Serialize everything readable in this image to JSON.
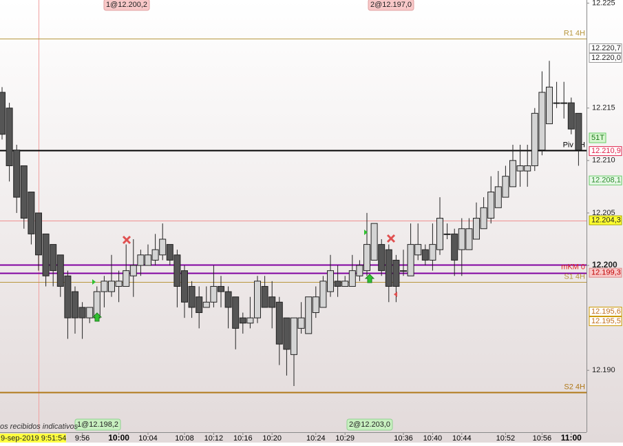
{
  "chart_data": {
    "type": "candlestick",
    "categories": [
      null,
      null,
      null,
      null,
      null,
      null,
      null,
      null,
      null,
      null,
      null,
      "9:56",
      null,
      null,
      null,
      null,
      "10:00",
      null,
      null,
      null,
      "10:04",
      null,
      null,
      null,
      null,
      "10:08",
      null,
      null,
      null,
      "10:12",
      null,
      null,
      null,
      "10:16",
      null,
      null,
      null,
      "10:20",
      null,
      null,
      null,
      null,
      null,
      "10:24",
      null,
      null,
      null,
      "10:29",
      null,
      null,
      null,
      null,
      null,
      null,
      null,
      "10:36",
      null,
      null,
      null,
      "10:40",
      null,
      null,
      null,
      "10:44",
      null,
      null,
      null,
      null,
      null,
      "10:52",
      null,
      null,
      null,
      null,
      "10:56",
      null,
      null,
      null,
      "11:00",
      null
    ],
    "open": [
      12.2165,
      12.215,
      12.211,
      12.2095,
      12.207,
      12.205,
      12.203,
      12.202,
      12.201,
      12.199,
      12.1975,
      12.196,
      12.195,
      12.195,
      12.1975,
      12.1975,
      12.198,
      12.198,
      12.199,
      12.2,
      12.2,
      12.2005,
      12.201,
      12.202,
      12.201,
      12.1995,
      12.198,
      12.197,
      12.196,
      12.1965,
      12.198,
      12.1975,
      12.197,
      12.195,
      12.1945,
      12.195,
      12.198,
      12.197,
      12.1965,
      12.195,
      12.1915,
      12.194,
      12.1935,
      12.1955,
      12.196,
      12.1975,
      12.1985,
      12.198,
      12.198,
      12.199,
      12.1995,
      12.2005,
      12.202,
      12.2015,
      12.2005,
      12.1995,
      12.199,
      12.201,
      12.2015,
      12.2005,
      12.2015,
      12.203,
      12.203,
      12.2015,
      12.2015,
      12.2025,
      12.2035,
      12.2045,
      12.2055,
      12.2065,
      12.2075,
      12.209,
      12.209,
      12.2095,
      12.211,
      12.2135,
      12.2155,
      12.2155,
      12.2155,
      12.2145
    ],
    "high": [
      12.217,
      12.2155,
      12.2115,
      12.2095,
      12.207,
      12.205,
      12.203,
      12.202,
      12.201,
      12.1995,
      12.198,
      12.1965,
      12.196,
      12.198,
      12.199,
      12.201,
      12.1995,
      12.202,
      12.2025,
      12.2015,
      12.202,
      12.203,
      12.204,
      12.202,
      12.2015,
      12.2,
      12.1985,
      12.198,
      12.198,
      12.2,
      12.199,
      12.198,
      12.197,
      12.1955,
      12.197,
      12.199,
      12.199,
      12.1985,
      12.197,
      12.195,
      12.195,
      12.1965,
      12.197,
      12.198,
      12.199,
      12.201,
      12.2,
      12.199,
      12.201,
      12.2005,
      12.205,
      12.204,
      12.2025,
      12.202,
      12.201,
      12.2015,
      12.204,
      12.204,
      12.202,
      12.204,
      12.2065,
      12.204,
      12.2035,
      12.2045,
      12.2045,
      12.206,
      12.2065,
      12.2085,
      12.209,
      12.2095,
      12.2115,
      12.2115,
      12.2115,
      12.215,
      12.2185,
      12.2195,
      12.2175,
      12.2175,
      12.216,
      12.2145
    ],
    "low": [
      12.212,
      12.208,
      12.205,
      12.2035,
      12.202,
      12.1995,
      12.198,
      12.198,
      12.197,
      12.193,
      12.1935,
      12.193,
      12.1945,
      12.195,
      12.196,
      12.197,
      12.1965,
      12.198,
      12.197,
      12.199,
      12.2,
      12.2,
      12.2005,
      12.2,
      12.196,
      12.195,
      12.195,
      12.194,
      12.196,
      12.196,
      12.196,
      12.194,
      12.192,
      12.1935,
      12.194,
      12.1945,
      12.196,
      12.194,
      12.1905,
      12.1895,
      12.1885,
      12.1935,
      12.1935,
      12.195,
      12.196,
      12.197,
      12.197,
      12.198,
      12.198,
      12.1985,
      12.199,
      12.2005,
      12.199,
      12.1965,
      12.1965,
      12.199,
      12.199,
      12.2005,
      12.2,
      12.1995,
      12.201,
      12.2025,
      12.199,
      12.199,
      12.2015,
      12.2025,
      12.2035,
      12.204,
      12.2055,
      12.2065,
      12.2075,
      12.2075,
      12.2075,
      12.209,
      12.2105,
      12.2135,
      12.215,
      12.214,
      12.2125,
      12.2095
    ],
    "close": [
      12.2125,
      12.2095,
      12.2065,
      12.2045,
      12.203,
      12.201,
      12.199,
      12.1995,
      12.198,
      12.195,
      12.195,
      12.195,
      12.196,
      12.1975,
      12.1985,
      12.1985,
      12.1985,
      12.1995,
      12.2,
      12.201,
      12.201,
      12.2015,
      12.2025,
      12.2005,
      12.198,
      12.1965,
      12.196,
      12.1955,
      12.1965,
      12.198,
      12.1975,
      12.196,
      12.194,
      12.1945,
      12.195,
      12.1985,
      12.196,
      12.196,
      12.1925,
      12.192,
      12.195,
      12.195,
      12.197,
      12.197,
      12.1985,
      12.1995,
      12.198,
      12.1985,
      12.1995,
      12.2,
      12.202,
      12.204,
      12.1995,
      12.198,
      12.198,
      12.1995,
      12.202,
      12.202,
      12.2005,
      12.202,
      12.2045,
      12.203,
      12.2005,
      12.2035,
      12.2035,
      12.2045,
      12.2055,
      12.207,
      12.2075,
      12.2085,
      12.21,
      12.2095,
      12.2095,
      12.2145,
      12.2165,
      12.217,
      12.2155,
      12.2155,
      12.213,
      12.211
    ],
    "up_color": "#d4d4d4",
    "down_color": "#555555",
    "ylim": [
      12.2253,
      12.1841
    ],
    "yticks": [
      12.225,
      12.215,
      {
        "value": 12.21,
        "label": "12.210"
      },
      12.205,
      {
        "value": 12.2,
        "label": "12.200"
      },
      {
        "value": 12.19,
        "label": "12.190"
      }
    ],
    "levels": [
      {
        "name": "R1 4H",
        "value": 12.2216,
        "color": "#b8963c"
      },
      {
        "name": "Piv 4H",
        "value": 12.211,
        "color": "#000000"
      },
      {
        "value": 12.2043,
        "color": "#f09090"
      },
      {
        "name": "mKM 0",
        "value": 12.2001,
        "color": "#8000a0"
      },
      {
        "value": 12.1993,
        "color": "#8000a0"
      },
      {
        "name": "S1 4H",
        "value": 12.1984,
        "color": "#b8963c"
      },
      {
        "name": "S2 4H",
        "value": 12.1879,
        "color": "#b07818"
      }
    ],
    "price_tags": [
      {
        "value": 12.2207,
        "label": "12.220,7",
        "style": "plain"
      },
      {
        "value": 12.22,
        "label": "12.220,0",
        "style": "plain"
      },
      {
        "value": 12.2109,
        "label": "12.210,9",
        "style": "red"
      },
      {
        "value": 12.2081,
        "label": "12.208,1",
        "style": "green"
      },
      {
        "value": 12.2043,
        "label": "12.204,3",
        "style": "yellow"
      },
      {
        "value": 12.1993,
        "label": "12.199,3",
        "style": "pink"
      },
      {
        "value": 12.1956,
        "label": "12.195,6",
        "style": "orange"
      },
      {
        "value": 12.1955,
        "label": "12.195,5",
        "style": "orange"
      }
    ],
    "tick_counter": "51T",
    "trade_labels": [
      {
        "label": "1@12.200,2",
        "position": "top"
      },
      {
        "label": "2@12.197,0",
        "position": "top"
      },
      {
        "label": "1@12.198,2",
        "position": "bottom"
      },
      {
        "label": "2@12.203,0",
        "position": "bottom"
      }
    ],
    "status_text": "os recibidos indicativos",
    "cursor_time": "9-sep-2019 9:51:54"
  }
}
